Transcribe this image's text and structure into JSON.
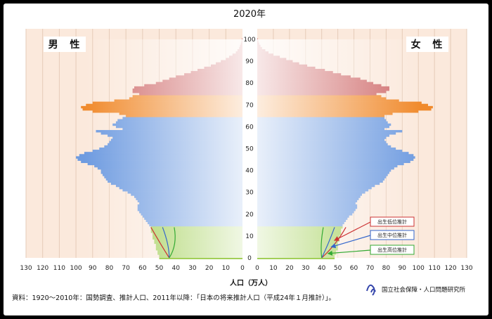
{
  "chart_data": {
    "type": "population-pyramid",
    "title": "2020年",
    "xlabel": "人口（万人）",
    "x_ticks_left": [
      "130",
      "120",
      "110",
      "100",
      "90",
      "80",
      "70",
      "60",
      "50",
      "40",
      "30",
      "20",
      "10",
      "0"
    ],
    "x_ticks_right": [
      "0",
      "10",
      "20",
      "30",
      "40",
      "50",
      "60",
      "70",
      "80",
      "90",
      "100",
      "110",
      "120",
      "130"
    ],
    "y_ticks": [
      "0",
      "10",
      "20",
      "30",
      "40",
      "50",
      "60",
      "70",
      "80",
      "90",
      "100"
    ],
    "xlim": [
      0,
      130
    ],
    "ylim": [
      0,
      100
    ],
    "left_label": "男 性",
    "right_label": "女 性",
    "age": [
      0,
      1,
      2,
      3,
      4,
      5,
      6,
      7,
      8,
      9,
      10,
      11,
      12,
      13,
      14,
      15,
      16,
      17,
      18,
      19,
      20,
      21,
      22,
      23,
      24,
      25,
      26,
      27,
      28,
      29,
      30,
      31,
      32,
      33,
      34,
      35,
      36,
      37,
      38,
      39,
      40,
      41,
      42,
      43,
      44,
      45,
      46,
      47,
      48,
      49,
      50,
      51,
      52,
      53,
      54,
      55,
      56,
      57,
      58,
      59,
      60,
      61,
      62,
      63,
      64,
      65,
      66,
      67,
      68,
      69,
      70,
      71,
      72,
      73,
      74,
      75,
      76,
      77,
      78,
      79,
      80,
      81,
      82,
      83,
      84,
      85,
      86,
      87,
      88,
      89,
      90,
      91,
      92,
      93,
      94,
      95,
      96,
      97,
      98,
      99,
      100
    ],
    "male": [
      50,
      50,
      51,
      51,
      52,
      52,
      52,
      53,
      53,
      54,
      54,
      54,
      55,
      55,
      55,
      56,
      57,
      58,
      59,
      60,
      61,
      62,
      63,
      63,
      63,
      62,
      63,
      64,
      65,
      67,
      69,
      72,
      74,
      76,
      79,
      81,
      82,
      83,
      84,
      85,
      85,
      87,
      89,
      93,
      97,
      99,
      100,
      98,
      95,
      90,
      86,
      83,
      81,
      80,
      79,
      78,
      81,
      85,
      88,
      72,
      76,
      78,
      76,
      75,
      72,
      70,
      74,
      90,
      96,
      97,
      94,
      90,
      77,
      68,
      66,
      62,
      66,
      66,
      65,
      59,
      52,
      48,
      44,
      40,
      35,
      31,
      27,
      23,
      19,
      16,
      13,
      10,
      8,
      6,
      4,
      3,
      2,
      1.5,
      1,
      0.6,
      0.3
    ],
    "female": [
      48,
      48,
      49,
      49,
      50,
      50,
      50,
      50,
      51,
      51,
      51,
      52,
      52,
      52,
      53,
      53,
      54,
      55,
      56,
      57,
      59,
      60,
      61,
      62,
      62,
      61,
      62,
      63,
      64,
      65,
      67,
      69,
      71,
      73,
      76,
      78,
      79,
      80,
      81,
      82,
      83,
      85,
      87,
      91,
      95,
      97,
      98,
      97,
      94,
      90,
      86,
      83,
      81,
      80,
      79,
      80,
      82,
      86,
      90,
      79,
      82,
      83,
      81,
      80,
      79,
      79,
      84,
      100,
      108,
      109,
      106,
      102,
      88,
      80,
      77,
      74,
      80,
      82,
      82,
      77,
      72,
      68,
      64,
      58,
      52,
      47,
      42,
      36,
      31,
      26,
      22,
      18,
      14,
      10,
      7,
      5,
      3,
      2,
      1.2,
      0.7,
      0.3
    ],
    "bands": [
      {
        "from": 0,
        "to": 14,
        "color": "#9ccc4c"
      },
      {
        "from": 15,
        "to": 64,
        "color": "#6e9be0"
      },
      {
        "from": 65,
        "to": 74,
        "color": "#f08a2c"
      },
      {
        "from": 75,
        "to": 100,
        "color": "#cf6a6a"
      }
    ],
    "legend": [
      {
        "label": "出生低位推計",
        "color": "#cc3333"
      },
      {
        "label": "出生中位推計",
        "color": "#3366cc"
      },
      {
        "label": "出生高位推計",
        "color": "#33aa33"
      }
    ]
  },
  "footer": {
    "source": "資料：1920～2010年：国勢調査、推計人口、2011年以降：「日本の将来推計人口（平成24年１月推計）」。",
    "institution": "国立社会保障・人口問題研究所"
  }
}
